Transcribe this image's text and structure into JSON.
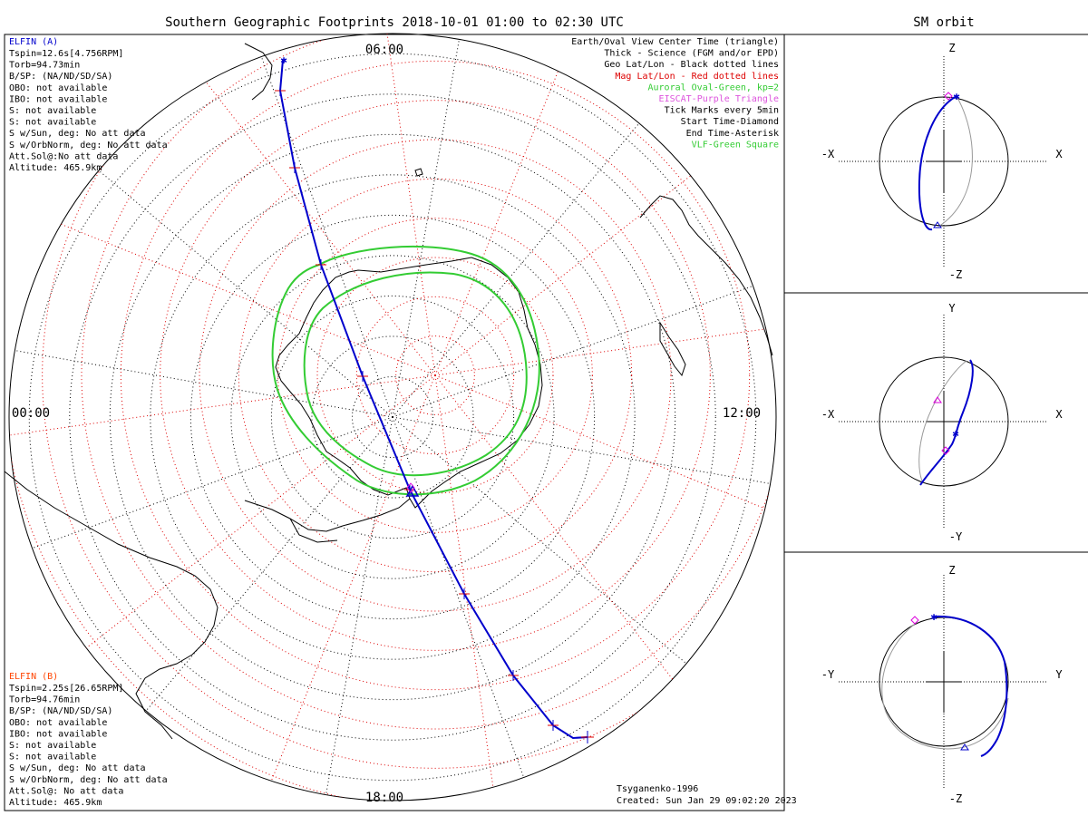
{
  "title": "Southern Geographic Footprints 2018-10-01 01:00 to 02:30 UTC",
  "sm_title": "SM orbit",
  "time_labels": {
    "top": "06:00",
    "right": "12:00",
    "bottom": "18:00",
    "left": "00:00"
  },
  "elfin_a": {
    "name": "ELFIN (A)",
    "color": "#0000cc",
    "lines": [
      "Tspin=12.6s[4.756RPM]",
      "Torb=94.73min",
      "B/SP: (NA/ND/SD/SA)",
      "OBO: not available",
      "IBO: not available",
      "S: not available",
      "S: not available",
      "S w/Sun, deg: No att data",
      "S w/OrbNorm, deg: No att data",
      "Att.Sol@:No att data",
      "Altitude: 465.9km"
    ]
  },
  "elfin_b": {
    "name": "ELFIN (B)",
    "color": "#ff4400",
    "lines": [
      "Tspin=2.25s[26.65RPM]",
      "Torb=94.76min",
      "B/SP: (NA/ND/SD/SA)",
      "OBO: not available",
      "IBO: not available",
      "S: not available",
      "S: not available",
      "S w/Sun, deg: No att data",
      "S w/OrbNorm, deg: No att data",
      "Att.Sol@: No att data",
      "Altitude: 465.9km"
    ]
  },
  "legend": [
    {
      "text": "Earth/Oval View Center Time (triangle)",
      "color": "#000000"
    },
    {
      "text": "Thick - Science (FGM and/or EPD)",
      "color": "#000000"
    },
    {
      "text": "Geo Lat/Lon - Black dotted lines",
      "color": "#000000"
    },
    {
      "text": "Mag Lat/Lon - Red dotted lines",
      "color": "#dd0000"
    },
    {
      "text": "Auroral Oval-Green, kp=2",
      "color": "#33cc33"
    },
    {
      "text": "EISCAT-Purple Triangle",
      "color": "#dd55dd"
    },
    {
      "text": "Tick Marks every 5min",
      "color": "#000000"
    },
    {
      "text": "Start Time-Diamond",
      "color": "#000000"
    },
    {
      "text": "End Time-Asterisk",
      "color": "#000000"
    },
    {
      "text": "VLF-Green Square",
      "color": "#33cc33"
    }
  ],
  "footer": {
    "model": "Tsyganenko-1996",
    "created": "Created: Sun Jan 29 09:02:20 2023"
  },
  "orbit_panels": [
    {
      "top": "Z",
      "bottom": "-Z",
      "left": "-X",
      "right": "X"
    },
    {
      "top": "Y",
      "bottom": "-Y",
      "left": "-X",
      "right": "X"
    },
    {
      "top": "Z",
      "bottom": "-Z",
      "left": "-Y",
      "right": "Y"
    }
  ],
  "colors": {
    "trace": "#0000cc",
    "mag_grid": "#dd0000",
    "geo_grid": "#000000",
    "oval": "#33cc33",
    "orbit_gray": "#999999"
  }
}
